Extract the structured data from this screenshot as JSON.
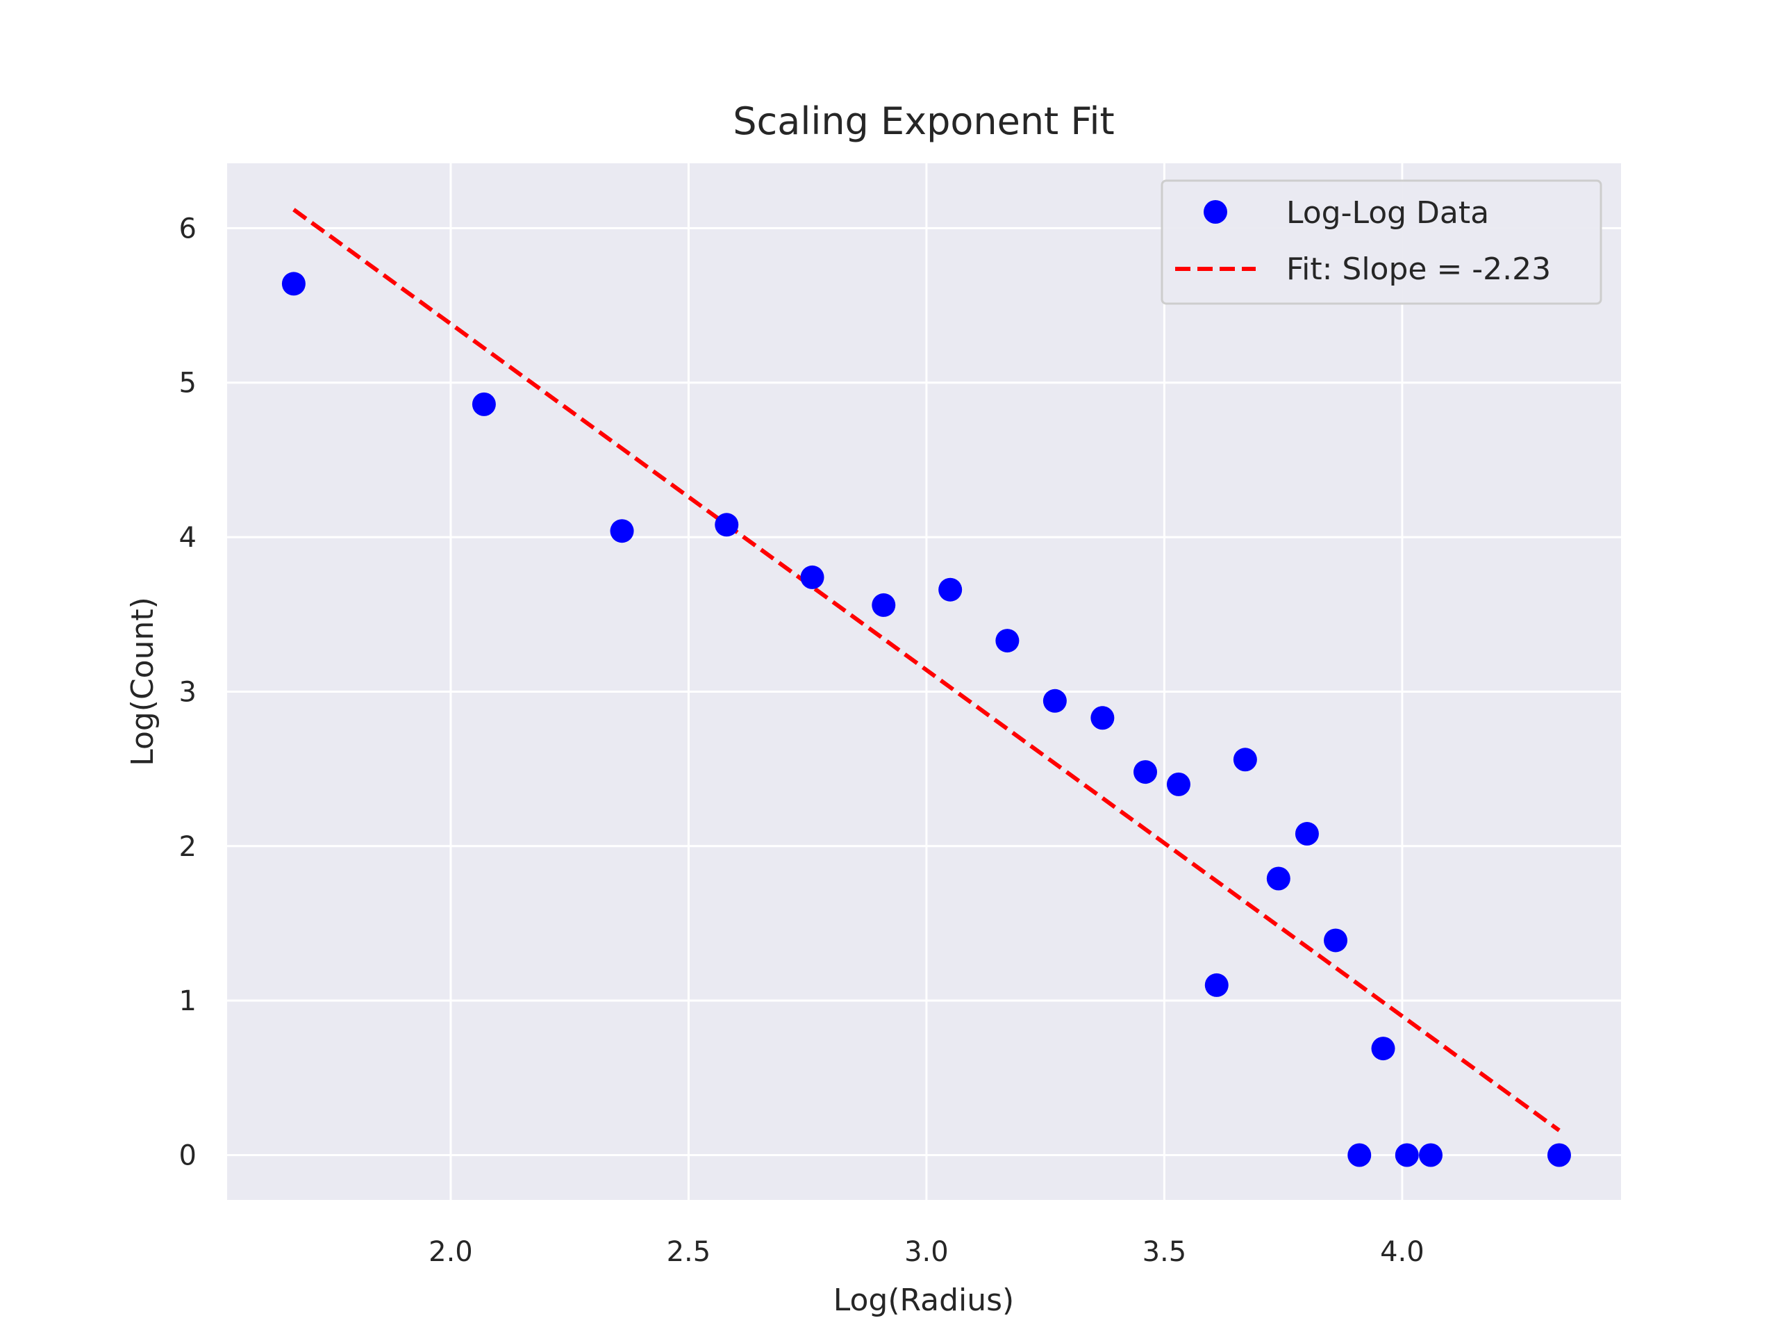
{
  "chart_data": {
    "type": "scatter",
    "title": "Scaling Exponent Fit",
    "xlabel": "Log(Radius)",
    "ylabel": "Log(Count)",
    "xlim": [
      1.53,
      4.46
    ],
    "ylim": [
      -0.29,
      6.42
    ],
    "xticks": [
      2.0,
      2.5,
      3.0,
      3.5,
      4.0
    ],
    "xtick_labels": [
      "2.0",
      "2.5",
      "3.0",
      "3.5",
      "4.0"
    ],
    "yticks": [
      0,
      1,
      2,
      3,
      4,
      5,
      6
    ],
    "ytick_labels": [
      "0",
      "1",
      "2",
      "3",
      "4",
      "5",
      "6"
    ],
    "grid": true,
    "legend_position": "top-right",
    "series": [
      {
        "name": "Log-Log Data",
        "kind": "points",
        "color": "#0000ff",
        "x": [
          1.67,
          2.07,
          2.36,
          2.58,
          2.76,
          2.91,
          3.05,
          3.17,
          3.27,
          3.37,
          3.46,
          3.53,
          3.61,
          3.67,
          3.74,
          3.8,
          3.86,
          3.91,
          3.96,
          4.01,
          4.06,
          4.33
        ],
        "y": [
          5.64,
          4.86,
          4.04,
          4.08,
          3.74,
          3.56,
          3.66,
          3.33,
          2.94,
          2.83,
          2.48,
          2.4,
          1.1,
          2.56,
          1.79,
          2.08,
          1.39,
          0.0,
          0.69,
          0.0,
          0.0,
          0.0
        ]
      },
      {
        "name": "Fit: Slope = -2.23",
        "kind": "line",
        "style": "dashed",
        "color": "#ff0000",
        "x": [
          1.67,
          4.33
        ],
        "y": [
          6.12,
          0.16
        ]
      }
    ]
  }
}
